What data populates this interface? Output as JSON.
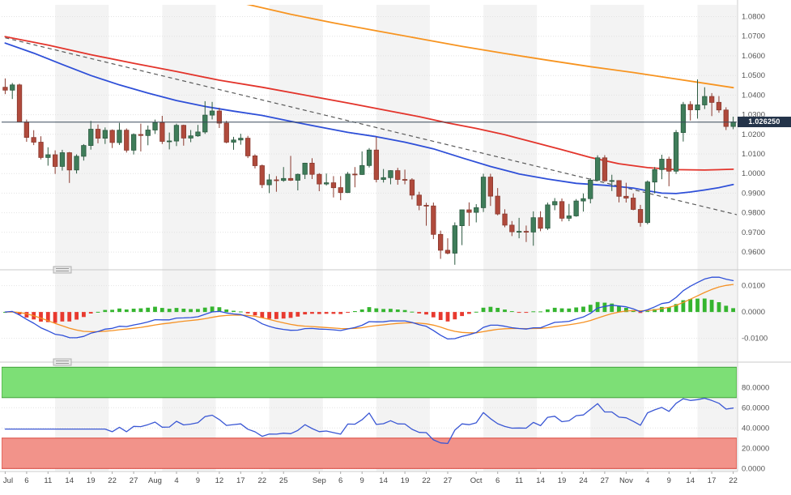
{
  "chart_data": {
    "type": "candlestick",
    "panels": [
      "price",
      "macd",
      "rsi"
    ],
    "last_price": 1.02625,
    "last_price_label": "1.026250",
    "axis_ranges": {
      "price": [
        0.953,
        1.086
      ]
    },
    "price_axis_ticks": [
      {
        "v": 1.08,
        "label": "1.0800"
      },
      {
        "v": 1.07,
        "label": "1.0700"
      },
      {
        "v": 1.06,
        "label": "1.0600"
      },
      {
        "v": 1.05,
        "label": "1.0500"
      },
      {
        "v": 1.04,
        "label": "1.0400"
      },
      {
        "v": 1.03,
        "label": "1.0300"
      },
      {
        "v": 1.02,
        "label": "1.0200"
      },
      {
        "v": 1.01,
        "label": "1.0100"
      },
      {
        "v": 1.0,
        "label": "1.0000"
      },
      {
        "v": 0.99,
        "label": "0.9900"
      },
      {
        "v": 0.98,
        "label": "0.9800"
      },
      {
        "v": 0.97,
        "label": "0.9700"
      },
      {
        "v": 0.96,
        "label": "0.9600"
      }
    ],
    "macd_axis_ticks": [
      {
        "v": 0.01,
        "label": "0.0100"
      },
      {
        "v": 0.0,
        "label": "0.0000"
      },
      {
        "v": -0.01,
        "label": "-0.0100"
      }
    ],
    "rsi_axis_ticks": [
      {
        "v": 80,
        "label": "80.0000"
      },
      {
        "v": 60,
        "label": "60.0000"
      },
      {
        "v": 40,
        "label": "40.0000"
      },
      {
        "v": 20,
        "label": "20.0000"
      },
      {
        "v": 0,
        "label": "0.0000"
      }
    ],
    "x_ticks": [
      {
        "label": "Jul",
        "i": 0
      },
      {
        "label": "6",
        "i": 3
      },
      {
        "label": "11",
        "i": 6
      },
      {
        "label": "14",
        "i": 9
      },
      {
        "label": "19",
        "i": 12
      },
      {
        "label": "22",
        "i": 15
      },
      {
        "label": "27",
        "i": 18
      },
      {
        "label": "Aug",
        "i": 21
      },
      {
        "label": "4",
        "i": 24
      },
      {
        "label": "9",
        "i": 27
      },
      {
        "label": "12",
        "i": 30
      },
      {
        "label": "17",
        "i": 33
      },
      {
        "label": "22",
        "i": 36
      },
      {
        "label": "25",
        "i": 39
      },
      {
        "label": "Sep",
        "i": 44
      },
      {
        "label": "6",
        "i": 47
      },
      {
        "label": "9",
        "i": 50
      },
      {
        "label": "14",
        "i": 53
      },
      {
        "label": "19",
        "i": 56
      },
      {
        "label": "22",
        "i": 59
      },
      {
        "label": "27",
        "i": 62
      },
      {
        "label": "Oct",
        "i": 66
      },
      {
        "label": "6",
        "i": 69
      },
      {
        "label": "11",
        "i": 72
      },
      {
        "label": "14",
        "i": 75
      },
      {
        "label": "19",
        "i": 78
      },
      {
        "label": "24",
        "i": 81
      },
      {
        "label": "27",
        "i": 84
      },
      {
        "label": "Nov",
        "i": 87
      },
      {
        "label": "4",
        "i": 90
      },
      {
        "label": "9",
        "i": 93
      },
      {
        "label": "14",
        "i": 96
      },
      {
        "label": "17",
        "i": 99
      },
      {
        "label": "22",
        "i": 102
      }
    ],
    "candles_ohlc": [
      [
        1.044,
        1.0485,
        1.0405,
        1.0425
      ],
      [
        1.0425,
        1.0462,
        1.038,
        1.0452
      ],
      [
        1.0452,
        1.0458,
        1.0305,
        1.0263
      ],
      [
        1.0263,
        1.0275,
        1.0162,
        1.0184
      ],
      [
        1.0184,
        1.0221,
        1.0145,
        1.016
      ],
      [
        1.016,
        1.019,
        1.0072,
        1.0082
      ],
      [
        1.0082,
        1.0134,
        1.004,
        1.0096
      ],
      [
        1.0096,
        1.0118,
        0.9998,
        1.0036
      ],
      [
        1.0036,
        1.0121,
        1.0015,
        1.0106
      ],
      [
        1.0106,
        1.011,
        0.9952,
        1.0018
      ],
      [
        1.0018,
        1.0098,
        1.0,
        1.0088
      ],
      [
        1.0088,
        1.015,
        1.0066,
        1.0143
      ],
      [
        1.0143,
        1.0268,
        1.0122,
        1.0226
      ],
      [
        1.0226,
        1.025,
        1.0154,
        1.018
      ],
      [
        1.018,
        1.0235,
        1.0151,
        1.022
      ],
      [
        1.022,
        1.0225,
        1.013,
        1.0158
      ],
      [
        1.0158,
        1.0258,
        1.0146,
        1.0221
      ],
      [
        1.0221,
        1.023,
        1.0107,
        1.0119
      ],
      [
        1.0119,
        1.0205,
        1.0097,
        1.0199
      ],
      [
        1.0199,
        1.0254,
        1.0113,
        1.0194
      ],
      [
        1.0194,
        1.0245,
        1.0144,
        1.0222
      ],
      [
        1.0222,
        1.0275,
        1.0202,
        1.026
      ],
      [
        1.026,
        1.0294,
        1.0151,
        1.0164
      ],
      [
        1.0164,
        1.0209,
        1.0123,
        1.0166
      ],
      [
        1.0166,
        1.0254,
        1.014,
        1.0246
      ],
      [
        1.0246,
        1.0249,
        1.0142,
        1.0181
      ],
      [
        1.0181,
        1.0222,
        1.016,
        1.0192
      ],
      [
        1.0192,
        1.0248,
        1.0187,
        1.0212
      ],
      [
        1.0212,
        1.0369,
        1.0202,
        1.0298
      ],
      [
        1.0298,
        1.0365,
        1.0276,
        1.0319
      ],
      [
        1.0319,
        1.0335,
        1.0232,
        1.0257
      ],
      [
        1.0257,
        1.0269,
        1.0154,
        1.016
      ],
      [
        1.016,
        1.0187,
        1.0121,
        1.0171
      ],
      [
        1.0171,
        1.0203,
        1.0147,
        1.018
      ],
      [
        1.018,
        1.0192,
        1.0079,
        1.009
      ],
      [
        1.009,
        1.0098,
        1.0026,
        1.004
      ],
      [
        1.004,
        1.0046,
        0.9926,
        0.9943
      ],
      [
        0.9943,
        0.9997,
        0.99,
        0.9968
      ],
      [
        0.9968,
        0.9987,
        0.9907,
        0.9965
      ],
      [
        0.9965,
        1.0033,
        0.9958,
        0.9975
      ],
      [
        0.9975,
        1.009,
        0.9962,
        0.9966
      ],
      [
        0.9966,
        1.0,
        0.9914,
        0.9996
      ],
      [
        0.9996,
        1.0055,
        0.9972,
        1.0053
      ],
      [
        1.0053,
        1.0078,
        0.9972,
        0.9996
      ],
      [
        0.9996,
        1.0002,
        0.991,
        0.9947
      ],
      [
        0.9947,
        1.0,
        0.9939,
        0.9953
      ],
      [
        0.9953,
        0.9987,
        0.9878,
        0.9928
      ],
      [
        0.9928,
        0.9987,
        0.9864,
        0.9903
      ],
      [
        0.9903,
        1.0008,
        0.9901,
        0.9997
      ],
      [
        0.9997,
        1.0033,
        0.993,
        0.9995
      ],
      [
        0.9995,
        1.0113,
        0.9993,
        1.0041
      ],
      [
        1.0041,
        1.013,
        1.0031,
        1.012
      ],
      [
        1.012,
        1.0187,
        0.9955,
        0.997
      ],
      [
        0.997,
        1.0023,
        0.9954,
        0.9979
      ],
      [
        0.9979,
        1.0017,
        0.9945,
        1.0015
      ],
      [
        1.0015,
        1.0029,
        0.9943,
        0.997
      ],
      [
        0.997,
        1.002,
        0.9945,
        0.9968
      ],
      [
        0.9968,
        0.9976,
        0.9868,
        0.989
      ],
      [
        0.989,
        0.9907,
        0.9813,
        0.9838
      ],
      [
        0.9838,
        0.9851,
        0.9734,
        0.9835
      ],
      [
        0.9835,
        0.9852,
        0.9666,
        0.969
      ],
      [
        0.969,
        0.9709,
        0.9565,
        0.9609
      ],
      [
        0.9609,
        0.967,
        0.9588,
        0.9594
      ],
      [
        0.9594,
        0.9751,
        0.9535,
        0.9734
      ],
      [
        0.9734,
        0.9816,
        0.9635,
        0.9815
      ],
      [
        0.9815,
        0.9853,
        0.9733,
        0.9802
      ],
      [
        0.9802,
        0.9844,
        0.9751,
        0.9826
      ],
      [
        0.9826,
        0.9999,
        0.9804,
        0.9982
      ],
      [
        0.9982,
        0.9999,
        0.9835,
        0.9885
      ],
      [
        0.9885,
        0.9926,
        0.9787,
        0.9794
      ],
      [
        0.9794,
        0.9818,
        0.9726,
        0.9737
      ],
      [
        0.9737,
        0.9758,
        0.9681,
        0.9703
      ],
      [
        0.9703,
        0.9774,
        0.967,
        0.9705
      ],
      [
        0.9705,
        0.9735,
        0.9651,
        0.9702
      ],
      [
        0.9702,
        0.9807,
        0.9632,
        0.9775
      ],
      [
        0.9775,
        0.9808,
        0.9706,
        0.9721
      ],
      [
        0.9721,
        0.9852,
        0.9712,
        0.984
      ],
      [
        0.984,
        0.9875,
        0.9813,
        0.9857
      ],
      [
        0.9857,
        0.9873,
        0.9756,
        0.9772
      ],
      [
        0.9772,
        0.9845,
        0.9757,
        0.9784
      ],
      [
        0.9784,
        0.987,
        0.978,
        0.986
      ],
      [
        0.986,
        0.9899,
        0.9806,
        0.9872
      ],
      [
        0.9872,
        0.9976,
        0.9848,
        0.9966
      ],
      [
        0.9966,
        1.0093,
        0.9961,
        1.008
      ],
      [
        1.008,
        1.0094,
        0.9958,
        0.9963
      ],
      [
        0.9963,
        0.9994,
        0.9911,
        0.9964
      ],
      [
        0.9964,
        0.9966,
        0.9853,
        0.9884
      ],
      [
        0.9884,
        0.9953,
        0.9852,
        0.9875
      ],
      [
        0.9875,
        0.9899,
        0.9813,
        0.9817
      ],
      [
        0.9817,
        0.984,
        0.9729,
        0.975
      ],
      [
        0.975,
        0.9965,
        0.9741,
        0.9957
      ],
      [
        0.9957,
        1.0033,
        0.9899,
        1.002
      ],
      [
        1.002,
        1.0096,
        0.9971,
        1.0073
      ],
      [
        1.0073,
        1.0086,
        0.9935,
        1.0012
      ],
      [
        1.0012,
        1.0222,
        0.9998,
        1.0209
      ],
      [
        1.0209,
        1.0365,
        1.0163,
        1.0352
      ],
      [
        1.0352,
        1.0369,
        1.027,
        1.0325
      ],
      [
        1.0325,
        1.048,
        1.028,
        1.035
      ],
      [
        1.035,
        1.044,
        1.0329,
        1.0393
      ],
      [
        1.0393,
        1.041,
        1.0293,
        1.0363
      ],
      [
        1.0363,
        1.0395,
        1.031,
        1.0324
      ],
      [
        1.0324,
        1.0338,
        1.0222,
        1.024
      ],
      [
        1.024,
        1.029,
        1.0226,
        1.0263
      ]
    ],
    "overlays": {
      "ma_slow": {
        "name": "ma-orange",
        "color": "#f79420",
        "points": [
          [
            28,
            1.0915
          ],
          [
            34,
            1.0862
          ],
          [
            40,
            1.0812
          ],
          [
            46,
            1.0768
          ],
          [
            52,
            1.0728
          ],
          [
            58,
            1.0688
          ],
          [
            64,
            1.0648
          ],
          [
            70,
            1.0612
          ],
          [
            76,
            1.0578
          ],
          [
            82,
            1.0545
          ],
          [
            88,
            1.0515
          ],
          [
            94,
            1.0482
          ],
          [
            98,
            1.046
          ],
          [
            102,
            1.0438
          ]
        ]
      },
      "ma_mid": {
        "name": "ma-red",
        "color": "#e3342b",
        "points": [
          [
            0,
            1.0698
          ],
          [
            6,
            1.0655
          ],
          [
            12,
            1.0606
          ],
          [
            18,
            1.0562
          ],
          [
            24,
            1.052
          ],
          [
            30,
            1.0476
          ],
          [
            36,
            1.044
          ],
          [
            42,
            1.04
          ],
          [
            48,
            1.036
          ],
          [
            54,
            1.0318
          ],
          [
            58,
            1.029
          ],
          [
            62,
            1.0258
          ],
          [
            66,
            1.023
          ],
          [
            70,
            1.0198
          ],
          [
            74,
            1.016
          ],
          [
            78,
            1.0122
          ],
          [
            82,
            1.0082
          ],
          [
            86,
            1.005
          ],
          [
            90,
            1.003
          ],
          [
            94,
            1.002
          ],
          [
            98,
            1.0018
          ],
          [
            102,
            1.0022
          ]
        ]
      },
      "ma_fast": {
        "name": "ma-blue",
        "color": "#2e4fd8",
        "points": [
          [
            0,
            1.0665
          ],
          [
            4,
            1.0614
          ],
          [
            8,
            1.0556
          ],
          [
            12,
            1.05
          ],
          [
            16,
            1.0452
          ],
          [
            20,
            1.041
          ],
          [
            24,
            1.0372
          ],
          [
            28,
            1.0342
          ],
          [
            32,
            1.0318
          ],
          [
            36,
            1.0296
          ],
          [
            40,
            1.0266
          ],
          [
            44,
            1.0238
          ],
          [
            48,
            1.021
          ],
          [
            52,
            1.0188
          ],
          [
            56,
            1.016
          ],
          [
            60,
            1.0126
          ],
          [
            64,
            1.008
          ],
          [
            68,
            1.0036
          ],
          [
            72,
            0.9998
          ],
          [
            76,
            0.9972
          ],
          [
            80,
            0.995
          ],
          [
            84,
            0.994
          ],
          [
            88,
            0.9926
          ],
          [
            90,
            0.9912
          ],
          [
            92,
            0.99
          ],
          [
            94,
            0.9898
          ],
          [
            96,
            0.9906
          ],
          [
            98,
            0.9916
          ],
          [
            100,
            0.9928
          ],
          [
            102,
            0.9944
          ]
        ]
      },
      "trendline": {
        "name": "trendline-dashed",
        "color": "#5a5a5a",
        "style": "dashed",
        "from": [
          0,
          1.0692
        ],
        "to": [
          103,
          0.9786
        ]
      }
    },
    "indicators": {
      "macd": {
        "fast": 12,
        "slow": 26,
        "signal": 9,
        "range": [
          -0.0175,
          0.0145
        ],
        "line_color": "#2e4fd8",
        "signal_color": "#f59123",
        "hist_up": "#35b52f",
        "hist_down": "#e8392e"
      },
      "rsi": {
        "period": 14,
        "range": [
          -3,
          101
        ],
        "color": "#3a57d4",
        "zones": [
          {
            "name": "rsi-overbought-zone",
            "from": 70,
            "to": 100,
            "fill": "#7ddf76",
            "stroke": "#3fa237"
          },
          {
            "name": "rsi-oversold-zone",
            "from": 0,
            "to": 30,
            "fill": "#f2938a",
            "stroke": "#d84339"
          }
        ]
      }
    }
  },
  "style": {
    "bg": "#ffffff",
    "stripe": "#f3f3f3",
    "grid": "#e2e2e2",
    "axis_line": "#cccccc",
    "separator": "#c9c9c9",
    "handle_fill": "#e8e8e8",
    "handle_border": "#b0b0b0",
    "handle_lines": "#9a9a9a",
    "candle_up": "#3f7d5a",
    "candle_up_border": "#2c5a40",
    "candle_down": "#b04a3c",
    "candle_down_border": "#8a3a2f",
    "price_line": "#3a4a5a",
    "badge_bg": "#24344a",
    "badge_text": "#ffffff",
    "y_label": "#555555",
    "x_label": "#444444",
    "tick_mark": "#aaaaaa"
  }
}
